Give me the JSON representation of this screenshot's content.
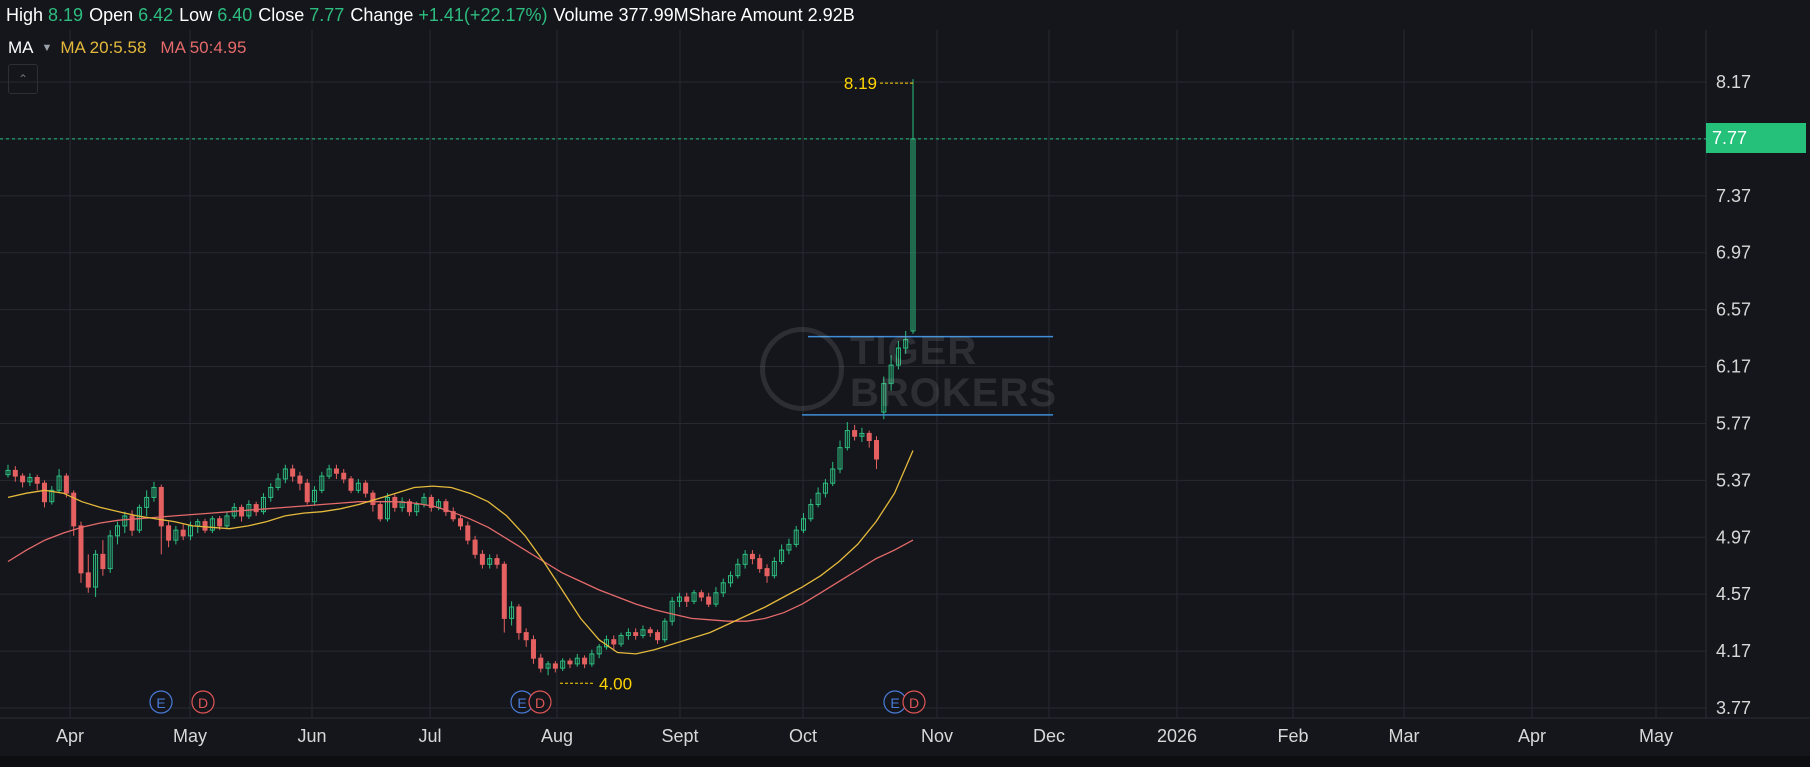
{
  "quote": {
    "high_label": "High",
    "high": "8.19",
    "open_label": "Open",
    "open": "6.42",
    "low_label": "Low",
    "low": "6.40",
    "close_label": "Close",
    "close": "7.77",
    "change_label": "Change",
    "change": "+1.41(+22.17%)",
    "volume_label": "Volume",
    "volume": "377.99M",
    "share_amount_label": "Share Amount",
    "share_amount": "2.92B"
  },
  "indicator": {
    "name": "MA",
    "ma20_label": "MA 20:5.58",
    "ma50_label": "MA 50:4.95",
    "caret_icon": "caret-down-icon",
    "collapse_icon": "chevron-up-icon"
  },
  "last_price_tag": "7.77",
  "watermark": {
    "line1": "TIGER",
    "line2": "BROKERS"
  },
  "annotations": {
    "high_marker": "8.19",
    "low_marker": "4.00"
  },
  "event_badges": [
    {
      "letters": [
        "E",
        "D"
      ]
    },
    {
      "letters": [
        "E",
        "D"
      ]
    },
    {
      "letters": [
        "E",
        "D"
      ]
    }
  ],
  "colors": {
    "background": "#14161c",
    "up": "#2dbd7f",
    "down": "#e56060",
    "ma20": "#e5b93b",
    "ma50": "#e56a6a",
    "annotation": "#ffd400",
    "horizontal_lines": "#3f8ed6",
    "price_tag": "#25c17a"
  },
  "chart_data": {
    "type": "candlestick",
    "y_ticks": [
      "8.17",
      "7.77",
      "7.37",
      "6.97",
      "6.57",
      "6.17",
      "5.77",
      "5.37",
      "4.97",
      "4.57",
      "4.17",
      "3.77"
    ],
    "x_ticks": [
      "Apr",
      "May",
      "Jun",
      "Jul",
      "Aug",
      "Sept",
      "Oct",
      "Nov",
      "Dec",
      "2026",
      "Feb",
      "Mar",
      "Apr",
      "May"
    ],
    "ylim": [
      3.77,
      8.17
    ],
    "grid": true,
    "last_price": 7.77,
    "period_high": 8.19,
    "period_low": 4.0,
    "horizontal_lines": [
      6.38,
      5.83
    ],
    "series": [
      {
        "name": "MA 20",
        "value": 5.58
      },
      {
        "name": "MA 50",
        "value": 4.95
      }
    ],
    "candles": [
      [
        5.41,
        5.44,
        5.48,
        5.39
      ],
      [
        5.44,
        5.4,
        5.47,
        5.36
      ],
      [
        5.4,
        5.36,
        5.42,
        5.32
      ],
      [
        5.36,
        5.39,
        5.42,
        5.33
      ],
      [
        5.39,
        5.35,
        5.41,
        5.3
      ],
      [
        5.35,
        5.22,
        5.37,
        5.18
      ],
      [
        5.22,
        5.3,
        5.33,
        5.2
      ],
      [
        5.3,
        5.4,
        5.45,
        5.28
      ],
      [
        5.4,
        5.28,
        5.42,
        5.25
      ],
      [
        5.28,
        5.05,
        5.3,
        4.98
      ],
      [
        5.05,
        4.72,
        5.08,
        4.65
      ],
      [
        4.72,
        4.62,
        4.85,
        4.58
      ],
      [
        4.62,
        4.85,
        4.88,
        4.55
      ],
      [
        4.85,
        4.75,
        4.95,
        4.7
      ],
      [
        4.75,
        4.98,
        5.02,
        4.72
      ],
      [
        4.98,
        5.05,
        5.08,
        4.92
      ],
      [
        5.05,
        5.12,
        5.15,
        5.0
      ],
      [
        5.12,
        5.02,
        5.16,
        4.98
      ],
      [
        5.02,
        5.18,
        5.2,
        5.0
      ],
      [
        5.18,
        5.25,
        5.3,
        5.12
      ],
      [
        5.25,
        5.32,
        5.36,
        5.22
      ],
      [
        5.32,
        5.05,
        5.34,
        4.85
      ],
      [
        5.05,
        4.95,
        5.08,
        4.9
      ],
      [
        4.95,
        5.02,
        5.05,
        4.92
      ],
      [
        5.02,
        4.98,
        5.06,
        4.95
      ],
      [
        4.98,
        5.05,
        5.08,
        4.95
      ],
      [
        5.05,
        5.08,
        5.1,
        5.0
      ],
      [
        5.08,
        5.02,
        5.1,
        5.0
      ],
      [
        5.02,
        5.1,
        5.12,
        5.0
      ],
      [
        5.1,
        5.05,
        5.12,
        5.02
      ],
      [
        5.05,
        5.12,
        5.15,
        5.03
      ],
      [
        5.12,
        5.18,
        5.21,
        5.1
      ],
      [
        5.18,
        5.12,
        5.2,
        5.08
      ],
      [
        5.12,
        5.2,
        5.23,
        5.1
      ],
      [
        5.2,
        5.15,
        5.22,
        5.12
      ],
      [
        5.15,
        5.25,
        5.28,
        5.13
      ],
      [
        5.25,
        5.32,
        5.35,
        5.22
      ],
      [
        5.32,
        5.38,
        5.42,
        5.3
      ],
      [
        5.38,
        5.45,
        5.48,
        5.35
      ],
      [
        5.45,
        5.4,
        5.48,
        5.36
      ],
      [
        5.4,
        5.35,
        5.43,
        5.3
      ],
      [
        5.35,
        5.22,
        5.38,
        5.2
      ],
      [
        5.22,
        5.3,
        5.33,
        5.2
      ],
      [
        5.3,
        5.4,
        5.43,
        5.28
      ],
      [
        5.4,
        5.45,
        5.48,
        5.38
      ],
      [
        5.45,
        5.42,
        5.48,
        5.38
      ],
      [
        5.42,
        5.38,
        5.45,
        5.35
      ],
      [
        5.38,
        5.3,
        5.4,
        5.28
      ],
      [
        5.3,
        5.35,
        5.38,
        5.28
      ],
      [
        5.35,
        5.28,
        5.37,
        5.25
      ],
      [
        5.28,
        5.2,
        5.3,
        5.15
      ],
      [
        5.2,
        5.1,
        5.22,
        5.08
      ],
      [
        5.1,
        5.25,
        5.28,
        5.08
      ],
      [
        5.25,
        5.18,
        5.27,
        5.15
      ],
      [
        5.18,
        5.22,
        5.25,
        5.15
      ],
      [
        5.22,
        5.15,
        5.24,
        5.12
      ],
      [
        5.15,
        5.2,
        5.22,
        5.12
      ],
      [
        5.2,
        5.25,
        5.28,
        5.18
      ],
      [
        5.25,
        5.18,
        5.27,
        5.15
      ],
      [
        5.18,
        5.22,
        5.24,
        5.16
      ],
      [
        5.22,
        5.15,
        5.24,
        5.12
      ],
      [
        5.15,
        5.1,
        5.18,
        5.08
      ],
      [
        5.1,
        5.05,
        5.12,
        5.02
      ],
      [
        5.05,
        4.95,
        5.08,
        4.92
      ],
      [
        4.95,
        4.85,
        4.98,
        4.82
      ],
      [
        4.85,
        4.78,
        4.88,
        4.75
      ],
      [
        4.78,
        4.82,
        4.85,
        4.75
      ],
      [
        4.82,
        4.78,
        4.85,
        4.75
      ],
      [
        4.78,
        4.4,
        4.8,
        4.3
      ],
      [
        4.4,
        4.48,
        4.52,
        4.35
      ],
      [
        4.48,
        4.3,
        4.5,
        4.25
      ],
      [
        4.3,
        4.25,
        4.33,
        4.2
      ],
      [
        4.25,
        4.12,
        4.28,
        4.08
      ],
      [
        4.12,
        4.05,
        4.15,
        4.02
      ],
      [
        4.05,
        4.08,
        4.1,
        4.0
      ],
      [
        4.08,
        4.05,
        4.1,
        4.02
      ],
      [
        4.05,
        4.1,
        4.12,
        4.03
      ],
      [
        4.1,
        4.08,
        4.12,
        4.05
      ],
      [
        4.08,
        4.12,
        4.15,
        4.06
      ],
      [
        4.12,
        4.08,
        4.14,
        4.05
      ],
      [
        4.08,
        4.15,
        4.18,
        4.06
      ],
      [
        4.15,
        4.2,
        4.22,
        4.12
      ],
      [
        4.2,
        4.25,
        4.28,
        4.18
      ],
      [
        4.25,
        4.22,
        4.28,
        4.18
      ],
      [
        4.22,
        4.28,
        4.3,
        4.2
      ],
      [
        4.28,
        4.3,
        4.33,
        4.25
      ],
      [
        4.3,
        4.28,
        4.33,
        4.25
      ],
      [
        4.28,
        4.32,
        4.35,
        4.26
      ],
      [
        4.32,
        4.3,
        4.34,
        4.27
      ],
      [
        4.3,
        4.25,
        4.32,
        4.22
      ],
      [
        4.25,
        4.38,
        4.4,
        4.23
      ],
      [
        4.38,
        4.52,
        4.55,
        4.35
      ],
      [
        4.52,
        4.55,
        4.58,
        4.48
      ],
      [
        4.55,
        4.52,
        4.58,
        4.48
      ],
      [
        4.52,
        4.58,
        4.6,
        4.5
      ],
      [
        4.58,
        4.55,
        4.6,
        4.52
      ],
      [
        4.55,
        4.5,
        4.58,
        4.48
      ],
      [
        4.5,
        4.58,
        4.62,
        4.48
      ],
      [
        4.58,
        4.65,
        4.68,
        4.55
      ],
      [
        4.65,
        4.7,
        4.73,
        4.62
      ],
      [
        4.7,
        4.78,
        4.82,
        4.68
      ],
      [
        4.78,
        4.85,
        4.88,
        4.75
      ],
      [
        4.85,
        4.82,
        4.88,
        4.78
      ],
      [
        4.82,
        4.75,
        4.85,
        4.72
      ],
      [
        4.75,
        4.7,
        4.78,
        4.65
      ],
      [
        4.7,
        4.8,
        4.83,
        4.68
      ],
      [
        4.8,
        4.88,
        4.92,
        4.78
      ],
      [
        4.88,
        4.92,
        4.96,
        4.85
      ],
      [
        4.92,
        5.02,
        5.05,
        4.9
      ],
      [
        5.02,
        5.1,
        5.14,
        5.0
      ],
      [
        5.1,
        5.2,
        5.24,
        5.08
      ],
      [
        5.2,
        5.28,
        5.32,
        5.18
      ],
      [
        5.28,
        5.35,
        5.38,
        5.25
      ],
      [
        5.35,
        5.45,
        5.5,
        5.33
      ],
      [
        5.45,
        5.6,
        5.65,
        5.42
      ],
      [
        5.6,
        5.72,
        5.78,
        5.58
      ],
      [
        5.72,
        5.68,
        5.76,
        5.65
      ],
      [
        5.68,
        5.7,
        5.74,
        5.64
      ],
      [
        5.7,
        5.65,
        5.72,
        5.6
      ],
      [
        5.65,
        5.52,
        5.68,
        5.45
      ],
      [
        5.85,
        6.05,
        6.1,
        5.8
      ],
      [
        6.05,
        6.18,
        6.25,
        6.0
      ],
      [
        6.18,
        6.3,
        6.35,
        6.15
      ],
      [
        6.3,
        6.36,
        6.42,
        6.26
      ],
      [
        6.42,
        7.77,
        8.19,
        6.4
      ]
    ],
    "ma20": [
      5.25,
      5.28,
      5.3,
      5.28,
      5.22,
      5.18,
      5.15,
      5.12,
      5.1,
      5.08,
      5.05,
      5.04,
      5.03,
      5.05,
      5.08,
      5.12,
      5.14,
      5.15,
      5.17,
      5.2,
      5.24,
      5.28,
      5.32,
      5.33,
      5.32,
      5.28,
      5.22,
      5.12,
      4.98,
      4.8,
      4.6,
      4.4,
      4.25,
      4.16,
      4.15,
      4.18,
      4.22,
      4.26,
      4.3,
      4.36,
      4.42,
      4.48,
      4.55,
      4.62,
      4.7,
      4.8,
      4.92,
      5.08,
      5.28,
      5.58
    ],
    "ma50": [
      4.8,
      4.88,
      4.95,
      5.0,
      5.04,
      5.07,
      5.09,
      5.1,
      5.11,
      5.12,
      5.13,
      5.14,
      5.15,
      5.16,
      5.17,
      5.18,
      5.19,
      5.2,
      5.21,
      5.22,
      5.22,
      5.22,
      5.21,
      5.19,
      5.15,
      5.1,
      5.04,
      4.96,
      4.88,
      4.8,
      4.72,
      4.66,
      4.6,
      4.55,
      4.5,
      4.46,
      4.43,
      4.4,
      4.39,
      4.38,
      4.38,
      4.4,
      4.44,
      4.5,
      4.58,
      4.66,
      4.74,
      4.82,
      4.88,
      4.95
    ]
  }
}
